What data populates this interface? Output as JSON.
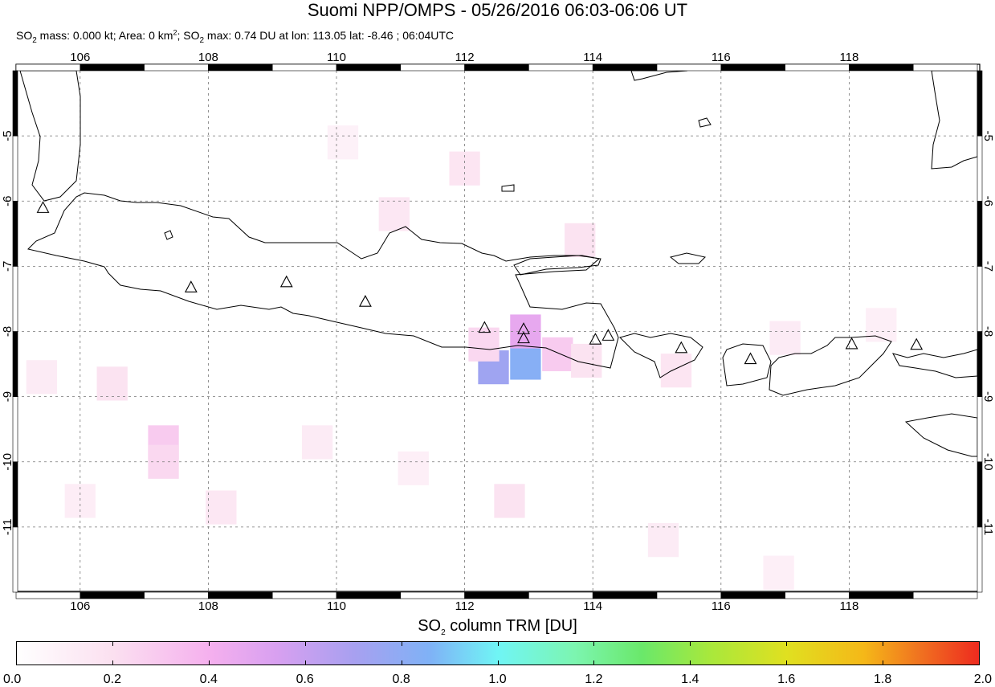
{
  "title": "Suomi NPP/OMPS - 05/26/2016 06:03-06:06 UT",
  "subtitle": {
    "p1": "SO",
    "p2": "2",
    "p3": " mass: 0.000 kt; Area: 0 km",
    "p4": "2",
    "p5": "; SO",
    "p6": "2",
    "p7": " max: 0.74 DU at lon: 113.05 lat: -8.46 ; 06:04UTC"
  },
  "map": {
    "lon_range": [
      105.0,
      120.0
    ],
    "lat_range": [
      -12.0,
      -4.0
    ],
    "x_ticks": [
      "106",
      "108",
      "110",
      "112",
      "114",
      "116",
      "118"
    ],
    "y_ticks": [
      "-5",
      "-6",
      "-7",
      "-8",
      "-9",
      "-10",
      "-11"
    ],
    "grid": true,
    "grid_style": "dashed"
  },
  "volcanoes": [
    {
      "lon": 105.42,
      "lat": -6.1
    },
    {
      "lon": 107.73,
      "lat": -7.32
    },
    {
      "lon": 109.22,
      "lat": -7.24
    },
    {
      "lon": 110.45,
      "lat": -7.54
    },
    {
      "lon": 112.31,
      "lat": -7.94
    },
    {
      "lon": 112.92,
      "lat": -7.96
    },
    {
      "lon": 112.92,
      "lat": -8.1
    },
    {
      "lon": 114.04,
      "lat": -8.12
    },
    {
      "lon": 114.24,
      "lat": -8.06
    },
    {
      "lon": 115.38,
      "lat": -8.25
    },
    {
      "lon": 116.46,
      "lat": -8.42
    },
    {
      "lon": 118.04,
      "lat": -8.19
    },
    {
      "lon": 119.05,
      "lat": -8.2
    }
  ],
  "so2_pixels": [
    {
      "lon": 112.45,
      "lat": -8.55,
      "value": 0.65
    },
    {
      "lon": 112.95,
      "lat": -8.48,
      "value": 0.74
    },
    {
      "lon": 112.95,
      "lat": -8.0,
      "value": 0.38
    },
    {
      "lon": 113.45,
      "lat": -8.35,
      "value": 0.22
    },
    {
      "lon": 112.3,
      "lat": -8.2,
      "value": 0.18
    },
    {
      "lon": 113.9,
      "lat": -8.45,
      "value": 0.14
    },
    {
      "lon": 107.3,
      "lat": -9.7,
      "value": 0.22
    },
    {
      "lon": 107.3,
      "lat": -10.0,
      "value": 0.18
    },
    {
      "lon": 106.5,
      "lat": -8.8,
      "value": 0.14
    },
    {
      "lon": 112.0,
      "lat": -5.5,
      "value": 0.13
    },
    {
      "lon": 110.9,
      "lat": -6.2,
      "value": 0.12
    },
    {
      "lon": 113.8,
      "lat": -6.6,
      "value": 0.14
    },
    {
      "lon": 115.3,
      "lat": -8.6,
      "value": 0.13
    },
    {
      "lon": 108.2,
      "lat": -10.7,
      "value": 0.12
    },
    {
      "lon": 112.7,
      "lat": -10.6,
      "value": 0.14
    },
    {
      "lon": 115.1,
      "lat": -11.2,
      "value": 0.1
    },
    {
      "lon": 106.0,
      "lat": -10.6,
      "value": 0.09
    },
    {
      "lon": 109.7,
      "lat": -9.7,
      "value": 0.1
    },
    {
      "lon": 117.0,
      "lat": -8.1,
      "value": 0.1
    },
    {
      "lon": 118.5,
      "lat": -7.9,
      "value": 0.08
    },
    {
      "lon": 105.4,
      "lat": -8.7,
      "value": 0.1
    },
    {
      "lon": 111.2,
      "lat": -10.1,
      "value": 0.08
    },
    {
      "lon": 110.1,
      "lat": -5.1,
      "value": 0.07
    },
    {
      "lon": 116.9,
      "lat": -11.7,
      "value": 0.08
    }
  ],
  "colorbar": {
    "title_p1": "SO",
    "title_p2": "2",
    "title_p3": " column TRM [DU]",
    "labels": [
      "0.0",
      "0.2",
      "0.4",
      "0.6",
      "0.8",
      "1.0",
      "1.2",
      "1.4",
      "1.6",
      "1.8",
      "2.0"
    ],
    "range": [
      0.0,
      2.0
    ],
    "colors": [
      "#ffffff",
      "#fbe0f0",
      "#f5b0ee",
      "#d8a0f0",
      "#a8a0f0",
      "#7fb2f6",
      "#70f5f5",
      "#7cf5b0",
      "#6ae86a",
      "#a8e83c",
      "#e0e020",
      "#f5b818",
      "#f07020",
      "#ee2b1f"
    ]
  },
  "colors": {
    "frame": "#000000",
    "coast": "#000000",
    "grid": "#777777",
    "so2_max": "#8c9ff2"
  }
}
